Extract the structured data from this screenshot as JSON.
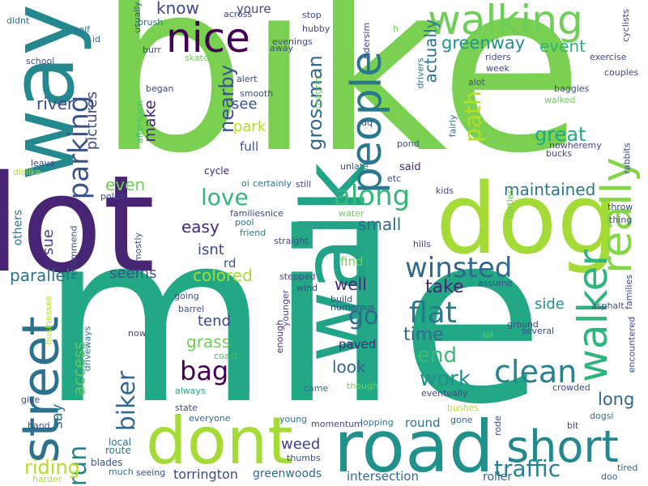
{
  "background": "#ffffff",
  "palette": [
    "#440154",
    "#482878",
    "#3e4989",
    "#31688e",
    "#26828e",
    "#1f9e89",
    "#35b779",
    "#6ece58",
    "#b5de2b",
    "#fde725"
  ],
  "words": [
    {
      "text": "bike",
      "color": "#7ad151"
    },
    {
      "text": "mile",
      "color": "#22a884"
    },
    {
      "text": "lot",
      "color": "#482475"
    },
    {
      "text": "way",
      "color": "#23898e"
    },
    {
      "text": "dog",
      "color": "#a5db36"
    },
    {
      "text": "walk",
      "color": "#20a386"
    },
    {
      "text": "road",
      "color": "#21918c"
    },
    {
      "text": "dont",
      "color": "#a5db36"
    },
    {
      "text": "street",
      "color": "#2c728e"
    },
    {
      "text": "walking",
      "color": "#6ece58"
    },
    {
      "text": "nice",
      "color": "#440154"
    },
    {
      "text": "people",
      "color": "#2a788e"
    },
    {
      "text": "walker",
      "color": "#2fb47c"
    },
    {
      "text": "really",
      "color": "#86d549"
    },
    {
      "text": "short",
      "color": "#23898e"
    },
    {
      "text": "winsted",
      "color": "#31688e"
    },
    {
      "text": "clean",
      "color": "#26828e"
    },
    {
      "text": "flat",
      "color": "#2a788e"
    },
    {
      "text": "parking",
      "color": "#3b528b"
    },
    {
      "text": "along",
      "color": "#35b779"
    },
    {
      "text": "love",
      "color": "#35b779"
    },
    {
      "text": "path",
      "color": "#b5de2b"
    },
    {
      "text": "bag",
      "color": "#440154"
    },
    {
      "text": "traffic",
      "color": "#26828e"
    },
    {
      "text": "run",
      "color": "#26828e"
    },
    {
      "text": "biker",
      "color": "#31688e"
    },
    {
      "text": "go",
      "color": "#31688e"
    },
    {
      "text": "end",
      "color": "#3bbb75"
    },
    {
      "text": "work",
      "color": "#21918c"
    },
    {
      "text": "riding",
      "color": "#b5de2b"
    },
    {
      "text": "grossman",
      "color": "#31688e"
    },
    {
      "text": "greenway",
      "color": "#21918c"
    },
    {
      "text": "nearby",
      "color": "#3b528b"
    },
    {
      "text": "great",
      "color": "#22a884"
    },
    {
      "text": "easy",
      "color": "#482878"
    },
    {
      "text": "maintained",
      "color": "#2a788e"
    },
    {
      "text": "long",
      "color": "#31688e"
    },
    {
      "text": "small",
      "color": "#31688e"
    },
    {
      "text": "parallel",
      "color": "#2c728e"
    },
    {
      "text": "colored",
      "color": "#a5db36"
    },
    {
      "text": "river",
      "color": "#3e4a89"
    },
    {
      "text": "know",
      "color": "#414487"
    },
    {
      "text": "actually",
      "color": "#2c728e"
    },
    {
      "text": "event",
      "color": "#2fb47c"
    },
    {
      "text": "time",
      "color": "#31688e"
    },
    {
      "text": "take",
      "color": "#482475"
    },
    {
      "text": "grass",
      "color": "#6ece58"
    },
    {
      "text": "weed",
      "color": "#414487"
    },
    {
      "text": "well",
      "color": "#482475"
    },
    {
      "text": "look",
      "color": "#31688e"
    },
    {
      "text": "make",
      "color": "#482878"
    },
    {
      "text": "access",
      "color": "#5ec962"
    },
    {
      "text": "tend",
      "color": "#3e4989"
    },
    {
      "text": "sue",
      "color": "#414487"
    },
    {
      "text": "say",
      "color": "#2c728e"
    },
    {
      "text": "even",
      "color": "#6ece58"
    },
    {
      "text": "seems",
      "color": "#3b528b"
    },
    {
      "text": "side",
      "color": "#21918c"
    },
    {
      "text": "see",
      "color": "#3b528b"
    },
    {
      "text": "park",
      "color": "#b5de2b"
    },
    {
      "text": "isnt",
      "color": "#3e4a89"
    },
    {
      "text": "pictures",
      "color": "#3e4a89"
    },
    {
      "text": "torrington",
      "color": "#3e4a89"
    },
    {
      "text": "greenwoods",
      "color": "#31688e"
    },
    {
      "text": "intersection",
      "color": "#31688e"
    },
    {
      "text": "others",
      "color": "#2a788e"
    },
    {
      "text": "paved",
      "color": "#482878"
    },
    {
      "text": "full",
      "color": "#3b528b"
    },
    {
      "text": "youre",
      "color": "#3e4a89"
    },
    {
      "text": "round",
      "color": "#2a788e"
    },
    {
      "text": "rd",
      "color": "#3b528b"
    },
    {
      "text": "find",
      "color": "#6ece58"
    },
    {
      "text": "said",
      "color": "#482878"
    },
    {
      "text": "roller",
      "color": "#31688e"
    },
    {
      "text": "cycle",
      "color": "#482475"
    },
    {
      "text": "local",
      "color": "#2a788e"
    },
    {
      "text": "route",
      "color": "#2a788e"
    },
    {
      "text": "blades",
      "color": "#3b528b"
    },
    {
      "text": "seeing",
      "color": "#3e4989"
    },
    {
      "text": "much",
      "color": "#2c728e"
    },
    {
      "text": "thumbs",
      "color": "#3b528b"
    },
    {
      "text": "everyone",
      "color": "#31688e"
    },
    {
      "text": "young",
      "color": "#2a788e"
    },
    {
      "text": "state",
      "color": "#3e4989"
    },
    {
      "text": "always",
      "color": "#22a884"
    },
    {
      "text": "coast",
      "color": "#44bf70"
    },
    {
      "text": "now",
      "color": "#3e4989"
    },
    {
      "text": "driveways",
      "color": "#2c728e"
    },
    {
      "text": "businesses",
      "color": "#b5de2b"
    },
    {
      "text": "barrel",
      "color": "#3b528b"
    },
    {
      "text": "going",
      "color": "#3b528b"
    },
    {
      "text": "enough",
      "color": "#482878"
    },
    {
      "text": "younger",
      "color": "#3e4989"
    },
    {
      "text": "build",
      "color": "#3e4989"
    },
    {
      "text": "numerous",
      "color": "#3e4989"
    },
    {
      "text": "wind",
      "color": "#3e4989"
    },
    {
      "text": "stepped",
      "color": "#3e4989"
    },
    {
      "text": "straight",
      "color": "#3e4989"
    },
    {
      "text": "came",
      "color": "#31688e"
    },
    {
      "text": "though",
      "color": "#6ece58"
    },
    {
      "text": "eventually",
      "color": "#3e4989"
    },
    {
      "text": "bushes",
      "color": "#b5de2b"
    },
    {
      "text": "gone",
      "color": "#31688e"
    },
    {
      "text": "lopping",
      "color": "#2a788e"
    },
    {
      "text": "momentum",
      "color": "#3e4989"
    },
    {
      "text": "rode",
      "color": "#3e4989"
    },
    {
      "text": "dogsi",
      "color": "#2c728e"
    },
    {
      "text": "bit",
      "color": "#3e4989"
    },
    {
      "text": "tired",
      "color": "#31688e"
    },
    {
      "text": "doo",
      "color": "#31688e"
    },
    {
      "text": "harder",
      "color": "#b5de2b"
    },
    {
      "text": "give",
      "color": "#3e4989"
    },
    {
      "text": "hand",
      "color": "#3e4989"
    },
    {
      "text": "mostly",
      "color": "#3e4989"
    },
    {
      "text": "recommend",
      "color": "#3e4989"
    },
    {
      "text": "polite",
      "color": "#3e4989"
    },
    {
      "text": "leave",
      "color": "#3e4989"
    },
    {
      "text": "dislike",
      "color": "#b5de2b"
    },
    {
      "text": "school",
      "color": "#3e4989"
    },
    {
      "text": "didnt",
      "color": "#2c728e"
    },
    {
      "text": "treeif",
      "color": "#2c728e"
    },
    {
      "text": "id",
      "color": "#2c728e"
    },
    {
      "text": "usually",
      "color": "#3e4989"
    },
    {
      "text": "brush",
      "color": "#2c728e"
    },
    {
      "text": "burr",
      "color": "#3e4989"
    },
    {
      "text": "skate",
      "color": "#6ece58"
    },
    {
      "text": "began",
      "color": "#3e4989"
    },
    {
      "text": "afternoon",
      "color": "#44bf70"
    },
    {
      "text": "across",
      "color": "#3e4989"
    },
    {
      "text": "away",
      "color": "#3e4989"
    },
    {
      "text": "evenings",
      "color": "#3e4989"
    },
    {
      "text": "stop",
      "color": "#3e4989"
    },
    {
      "text": "hubby",
      "color": "#3e4989"
    },
    {
      "text": "ridersim",
      "color": "#3e4989"
    },
    {
      "text": "drivers",
      "color": "#2c728e"
    },
    {
      "text": "alert",
      "color": "#3e4989"
    },
    {
      "text": "smooth",
      "color": "#3e4989"
    },
    {
      "text": "chagrin",
      "color": "#6ece58"
    },
    {
      "text": "dq",
      "color": "#3e4989"
    },
    {
      "text": "pond",
      "color": "#3e4989"
    },
    {
      "text": "fairly",
      "color": "#2c728e"
    },
    {
      "text": "certainly",
      "color": "#2c728e"
    },
    {
      "text": "oi",
      "color": "#2c728e"
    },
    {
      "text": "familiesnice",
      "color": "#3e4989"
    },
    {
      "text": "pool",
      "color": "#2a788e"
    },
    {
      "text": "friend",
      "color": "#2a788e"
    },
    {
      "text": "water",
      "color": "#6ece58"
    },
    {
      "text": "still",
      "color": "#3e4989"
    },
    {
      "text": "un",
      "color": "#3e4989"
    },
    {
      "text": "late",
      "color": "#2c728e"
    },
    {
      "text": "etc",
      "color": "#3e4989"
    },
    {
      "text": "kids",
      "color": "#3e4989"
    },
    {
      "text": "hills",
      "color": "#3e4989"
    },
    {
      "text": "riders",
      "color": "#3e4989"
    },
    {
      "text": "week",
      "color": "#3e4989"
    },
    {
      "text": "alot",
      "color": "#3e4989"
    },
    {
      "text": "cyclists",
      "color": "#3e4989"
    },
    {
      "text": "exercise",
      "color": "#3e4989"
    },
    {
      "text": "couples",
      "color": "#3e4989"
    },
    {
      "text": "baggies",
      "color": "#3e4989"
    },
    {
      "text": "walked",
      "color": "#6ece58"
    },
    {
      "text": "nowheremy",
      "color": "#3e4989"
    },
    {
      "text": "bucks",
      "color": "#3e4989"
    },
    {
      "text": "rabbits",
      "color": "#3e4989"
    },
    {
      "text": "turtles",
      "color": "#6ece58"
    },
    {
      "text": "throw",
      "color": "#3e4989"
    },
    {
      "text": "thing",
      "color": "#3e4989"
    },
    {
      "text": "assume",
      "color": "#3e4989"
    },
    {
      "text": "families",
      "color": "#3e4989"
    },
    {
      "text": "asphalt",
      "color": "#3e4989"
    },
    {
      "text": "ground",
      "color": "#3e4989"
    },
    {
      "text": "several",
      "color": "#3e4989"
    },
    {
      "text": "encountered",
      "color": "#3e4989"
    },
    {
      "text": "crowded",
      "color": "#3e4989"
    },
    {
      "text": "lol",
      "color": "#6ece58"
    },
    {
      "text": "h",
      "color": "#6ece58"
    }
  ]
}
